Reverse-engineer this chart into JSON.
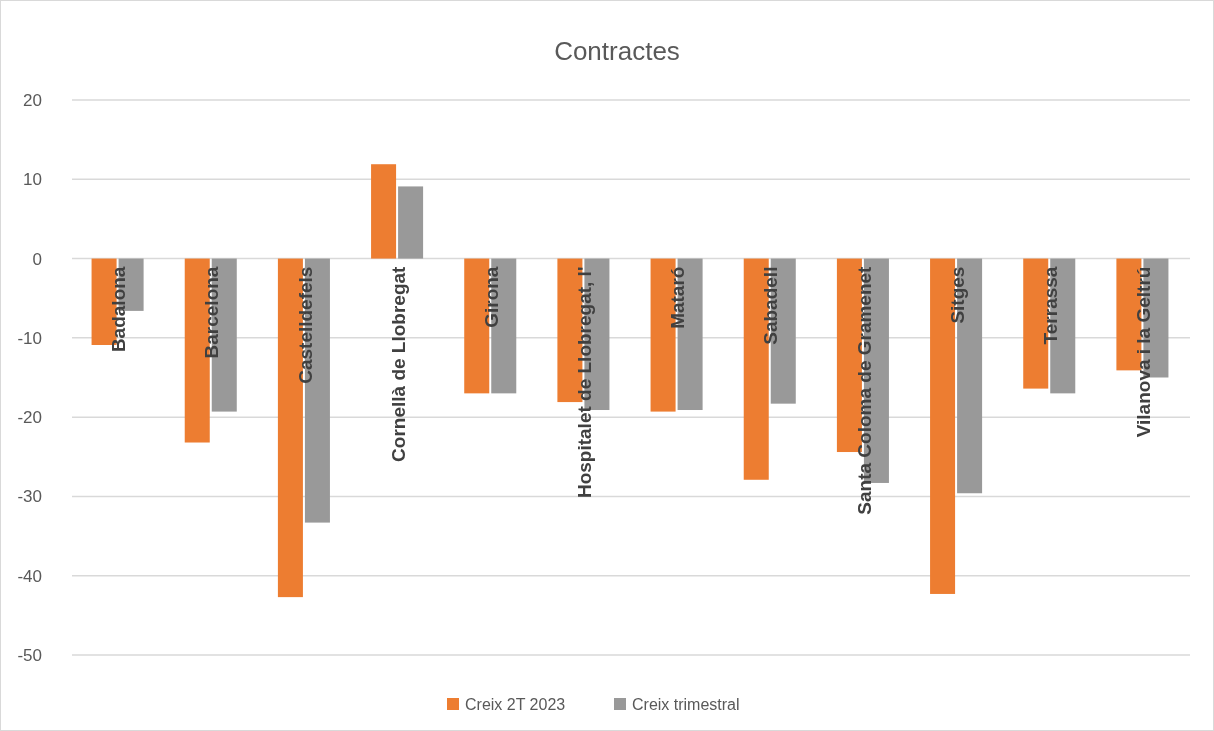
{
  "chart_data": {
    "type": "bar",
    "title": "Contractes",
    "categories": [
      "Badalona",
      "Barcelona",
      "Castelldefels",
      "Cornellà de Llobregat",
      "Girona",
      "Hospitalet de Llobregat, l'",
      "Mataró",
      "Sabadell",
      "Santa Coloma de Gramenet",
      "Sitges",
      "Terrassa",
      "Vilanova i la Geltrú"
    ],
    "series": [
      {
        "name": "Creix 2T 2023",
        "color": "#ed7d31",
        "values": [
          -10.9,
          -23.2,
          -42.7,
          11.9,
          -17.0,
          -18.1,
          -19.3,
          -27.9,
          -24.4,
          -42.3,
          -16.4,
          -14.1
        ]
      },
      {
        "name": "Creix trimestral",
        "color": "#999999",
        "values": [
          -6.6,
          -19.3,
          -33.3,
          9.1,
          -17.0,
          -19.1,
          -19.1,
          -18.3,
          -28.3,
          -29.6,
          -17.0,
          -15.0
        ]
      }
    ],
    "ylim": [
      -50,
      20
    ],
    "yticks": [
      -50,
      -40,
      -30,
      -20,
      -10,
      0,
      10,
      20
    ],
    "grid": "y",
    "legend": "bottom"
  }
}
